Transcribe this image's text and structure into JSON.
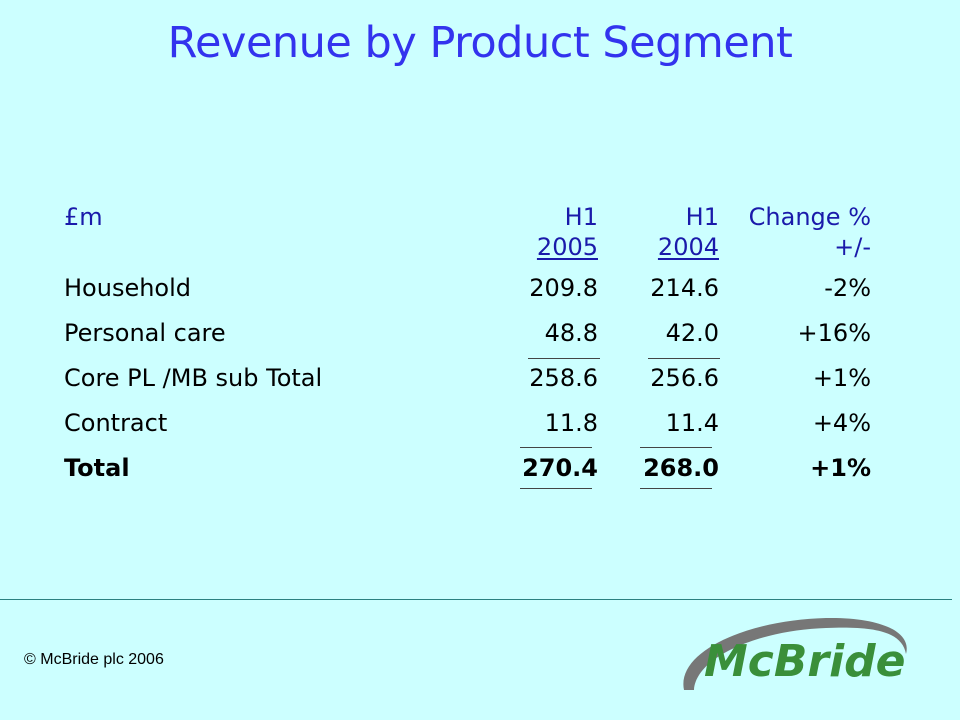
{
  "title": "Revenue by Product Segment",
  "table": {
    "header": {
      "unit": "£m",
      "col1_line1": "H1",
      "col1_line2": "2005",
      "col2_line1": "H1",
      "col2_line2": "2004",
      "col3_line1": "Change %",
      "col3_line2": "+/-"
    },
    "rows": [
      {
        "label": "Household",
        "h1_2005": "209.8",
        "h1_2004": "214.6",
        "change": "-2%"
      },
      {
        "label": "Personal care",
        "h1_2005": "48.8",
        "h1_2004": "42.0",
        "change": "+16%"
      },
      {
        "label": "Core PL /MB sub Total",
        "h1_2005": "258.6",
        "h1_2004": "256.6",
        "change": "+1%"
      },
      {
        "label": "Contract",
        "h1_2005": "11.8",
        "h1_2004": "11.4",
        "change": "+4%"
      },
      {
        "label": "Total",
        "h1_2005": "270.4",
        "h1_2004": "268.0",
        "change": "+1%"
      }
    ]
  },
  "footer": {
    "copyright": "© McBride plc 2006"
  },
  "logo": {
    "text": "McBride",
    "color": "#3a8f3a",
    "swoosh_color": "#666666"
  },
  "colors": {
    "background": "#ccffff",
    "title": "#3333ee",
    "header": "#1a1aaa"
  }
}
